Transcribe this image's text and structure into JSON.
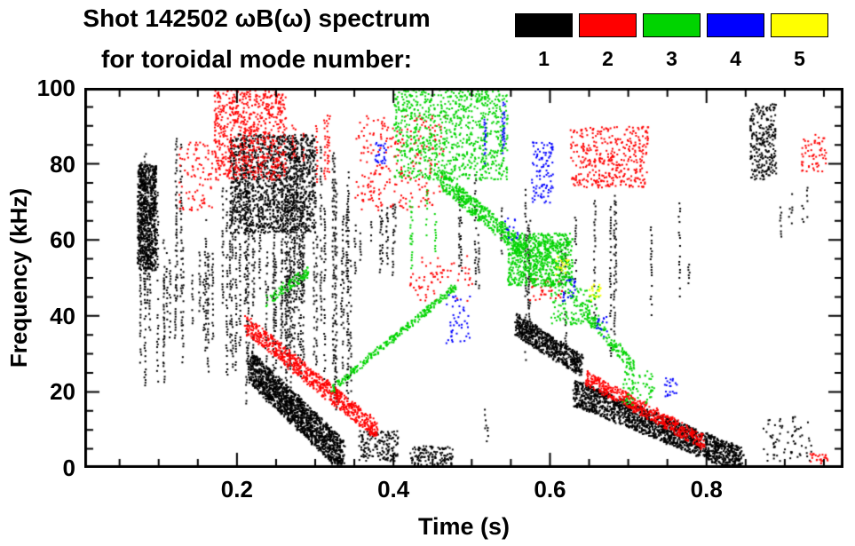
{
  "chart_data": {
    "type": "scatter",
    "title": "Shot 142502 ωB(ω) spectrum",
    "subtitle": "for toroidal mode number:",
    "xlabel": "Time (s)",
    "ylabel": "Frequency (kHz)",
    "xlim": [
      0.005,
      0.975
    ],
    "ylim": [
      0,
      100
    ],
    "xticks": [
      0.2,
      0.4,
      0.6,
      0.8
    ],
    "xtick_labels": [
      "0.2",
      "0.4",
      "0.6",
      "0.8"
    ],
    "yticks": [
      0,
      20,
      40,
      60,
      80,
      100
    ],
    "ytick_labels": [
      "0",
      "20",
      "40",
      "60",
      "80",
      "100"
    ],
    "xtick_minor": 0.05,
    "ytick_minor": 5,
    "grid": false,
    "legend_position": "top-right",
    "modes": [
      {
        "n": "1",
        "color": "#000000"
      },
      {
        "n": "2",
        "color": "#ff0000"
      },
      {
        "n": "3",
        "color": "#00d400"
      },
      {
        "n": "4",
        "color": "#0000ff"
      },
      {
        "n": "5",
        "color": "#ffff00"
      }
    ],
    "clusters": [
      {
        "mode": 1,
        "kind": "blob",
        "t": [
          0.072,
          0.096
        ],
        "f": [
          52,
          80
        ],
        "n": 750
      },
      {
        "mode": 1,
        "kind": "vstreaks",
        "t": [
          0.075,
          0.135
        ],
        "f": [
          18,
          90
        ],
        "streaks": 10
      },
      {
        "mode": 1,
        "kind": "vstreaks",
        "t": [
          0.1,
          0.175
        ],
        "f": [
          22,
          66
        ],
        "streaks": 12
      },
      {
        "mode": 1,
        "kind": "vstreaks",
        "t": [
          0.175,
          0.345
        ],
        "f": [
          12,
          88
        ],
        "streaks": 48
      },
      {
        "mode": 1,
        "kind": "blob",
        "t": [
          0.19,
          0.3
        ],
        "f": [
          62,
          88
        ],
        "n": 1400
      },
      {
        "mode": 1,
        "kind": "diag",
        "t": [
          0.215,
          0.335
        ],
        "f": [
          27,
          3
        ],
        "th": 9,
        "n": 1500
      },
      {
        "mode": 1,
        "kind": "vstreaks",
        "t": [
          0.335,
          0.405
        ],
        "f": [
          50,
          72
        ],
        "streaks": 11
      },
      {
        "mode": 1,
        "kind": "blob",
        "t": [
          0.355,
          0.405
        ],
        "f": [
          2,
          10
        ],
        "n": 160
      },
      {
        "mode": 1,
        "kind": "blob",
        "t": [
          0.42,
          0.475
        ],
        "f": [
          1,
          6
        ],
        "n": 130
      },
      {
        "mode": 1,
        "kind": "vstreaks",
        "t": [
          0.44,
          0.55
        ],
        "f": [
          40,
          78
        ],
        "streaks": 5
      },
      {
        "mode": 1,
        "kind": "vstreaks",
        "t": [
          0.5,
          0.535
        ],
        "f": [
          3,
          22
        ],
        "streaks": 2
      },
      {
        "mode": 1,
        "kind": "diag",
        "t": [
          0.555,
          0.64
        ],
        "f": [
          38,
          27
        ],
        "th": 6,
        "n": 650
      },
      {
        "mode": 1,
        "kind": "vstreaks",
        "t": [
          0.56,
          0.665
        ],
        "f": [
          25,
          80
        ],
        "streaks": 7
      },
      {
        "mode": 1,
        "kind": "diag",
        "t": [
          0.63,
          0.845
        ],
        "f": [
          20,
          2
        ],
        "th": 7,
        "n": 1700
      },
      {
        "mode": 1,
        "kind": "vstreaks",
        "t": [
          0.66,
          0.79
        ],
        "f": [
          25,
          75
        ],
        "streaks": 6
      },
      {
        "mode": 1,
        "kind": "blob",
        "t": [
          0.855,
          0.888
        ],
        "f": [
          76,
          96
        ],
        "n": 260
      },
      {
        "mode": 1,
        "kind": "vstreaks",
        "t": [
          0.885,
          0.935
        ],
        "f": [
          56,
          78
        ],
        "streaks": 5
      },
      {
        "mode": 1,
        "kind": "blob",
        "t": [
          0.87,
          0.935
        ],
        "f": [
          2,
          14
        ],
        "n": 70
      },
      {
        "mode": 2,
        "kind": "blob",
        "t": [
          0.125,
          0.168
        ],
        "f": [
          68,
          86
        ],
        "n": 90
      },
      {
        "mode": 2,
        "kind": "blob",
        "t": [
          0.17,
          0.262
        ],
        "f": [
          76,
          100
        ],
        "n": 700
      },
      {
        "mode": 2,
        "kind": "vstreaks",
        "t": [
          0.262,
          0.345
        ],
        "f": [
          72,
          96
        ],
        "streaks": 7
      },
      {
        "mode": 2,
        "kind": "blob",
        "t": [
          0.35,
          0.465
        ],
        "f": [
          68,
          93
        ],
        "n": 260
      },
      {
        "mode": 2,
        "kind": "diag",
        "t": [
          0.21,
          0.378
        ],
        "f": [
          38,
          10
        ],
        "th": 5,
        "n": 750
      },
      {
        "mode": 2,
        "kind": "blob",
        "t": [
          0.42,
          0.5
        ],
        "f": [
          44,
          56
        ],
        "n": 70
      },
      {
        "mode": 2,
        "kind": "blob",
        "t": [
          0.57,
          0.615
        ],
        "f": [
          44,
          50
        ],
        "n": 35
      },
      {
        "mode": 2,
        "kind": "blob",
        "t": [
          0.625,
          0.725
        ],
        "f": [
          74,
          90
        ],
        "n": 380
      },
      {
        "mode": 2,
        "kind": "diag",
        "t": [
          0.645,
          0.795
        ],
        "f": [
          24,
          7
        ],
        "th": 4,
        "n": 520
      },
      {
        "mode": 2,
        "kind": "blob",
        "t": [
          0.92,
          0.952
        ],
        "f": [
          78,
          88
        ],
        "n": 60
      },
      {
        "mode": 2,
        "kind": "blob",
        "t": [
          0.93,
          0.955
        ],
        "f": [
          1,
          4
        ],
        "n": 25
      },
      {
        "mode": 3,
        "kind": "diag",
        "t": [
          0.235,
          0.29
        ],
        "f": [
          44,
          52
        ],
        "th": 3,
        "n": 90
      },
      {
        "mode": 3,
        "kind": "diag",
        "t": [
          0.32,
          0.478
        ],
        "f": [
          21,
          48
        ],
        "th": 2,
        "n": 280
      },
      {
        "mode": 3,
        "kind": "blob",
        "t": [
          0.4,
          0.545
        ],
        "f": [
          76,
          100
        ],
        "n": 900
      },
      {
        "mode": 3,
        "kind": "vstreaks",
        "t": [
          0.41,
          0.46
        ],
        "f": [
          52,
          74
        ],
        "streaks": 4
      },
      {
        "mode": 3,
        "kind": "diag",
        "t": [
          0.46,
          0.565
        ],
        "f": [
          76,
          58
        ],
        "th": 5,
        "n": 420
      },
      {
        "mode": 3,
        "kind": "blob",
        "t": [
          0.545,
          0.628
        ],
        "f": [
          48,
          62
        ],
        "n": 750
      },
      {
        "mode": 3,
        "kind": "blob",
        "t": [
          0.6,
          0.662
        ],
        "f": [
          38,
          48
        ],
        "n": 130
      },
      {
        "mode": 3,
        "kind": "diag",
        "t": [
          0.64,
          0.708
        ],
        "f": [
          42,
          26
        ],
        "th": 4,
        "n": 150
      },
      {
        "mode": 3,
        "kind": "blob",
        "t": [
          0.69,
          0.732
        ],
        "f": [
          16,
          26
        ],
        "n": 70
      },
      {
        "mode": 4,
        "kind": "blob",
        "t": [
          0.375,
          0.392
        ],
        "f": [
          80,
          86
        ],
        "n": 28
      },
      {
        "mode": 4,
        "kind": "blob",
        "t": [
          0.465,
          0.497
        ],
        "f": [
          32,
          46
        ],
        "n": 45
      },
      {
        "mode": 4,
        "kind": "vstreaks",
        "t": [
          0.5,
          0.565
        ],
        "f": [
          78,
          98
        ],
        "streaks": 4
      },
      {
        "mode": 4,
        "kind": "blob",
        "t": [
          0.54,
          0.558
        ],
        "f": [
          60,
          66
        ],
        "n": 15
      },
      {
        "mode": 4,
        "kind": "blob",
        "t": [
          0.575,
          0.603
        ],
        "f": [
          70,
          86
        ],
        "n": 100
      },
      {
        "mode": 4,
        "kind": "blob",
        "t": [
          0.615,
          0.632
        ],
        "f": [
          44,
          50
        ],
        "n": 22
      },
      {
        "mode": 4,
        "kind": "blob",
        "t": [
          0.655,
          0.672
        ],
        "f": [
          34,
          40
        ],
        "n": 16
      },
      {
        "mode": 4,
        "kind": "blob",
        "t": [
          0.745,
          0.762
        ],
        "f": [
          19,
          24
        ],
        "n": 22
      },
      {
        "mode": 5,
        "kind": "blob",
        "t": [
          0.606,
          0.623
        ],
        "f": [
          51,
          56
        ],
        "n": 18
      },
      {
        "mode": 5,
        "kind": "blob",
        "t": [
          0.648,
          0.664
        ],
        "f": [
          44,
          49
        ],
        "n": 18
      }
    ]
  }
}
